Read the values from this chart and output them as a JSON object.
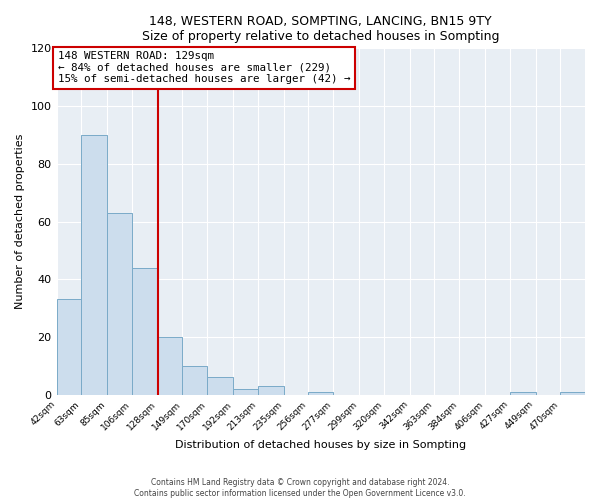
{
  "title": "148, WESTERN ROAD, SOMPTING, LANCING, BN15 9TY",
  "subtitle": "Size of property relative to detached houses in Sompting",
  "xlabel": "Distribution of detached houses by size in Sompting",
  "ylabel": "Number of detached properties",
  "bar_labels": [
    "42sqm",
    "63sqm",
    "85sqm",
    "106sqm",
    "128sqm",
    "149sqm",
    "170sqm",
    "192sqm",
    "213sqm",
    "235sqm",
    "256sqm",
    "277sqm",
    "299sqm",
    "320sqm",
    "342sqm",
    "363sqm",
    "384sqm",
    "406sqm",
    "427sqm",
    "449sqm",
    "470sqm"
  ],
  "bar_values": [
    33,
    90,
    63,
    44,
    20,
    10,
    6,
    2,
    3,
    0,
    1,
    0,
    0,
    0,
    0,
    0,
    0,
    0,
    1,
    0,
    1
  ],
  "bin_edges": [
    42,
    63,
    85,
    106,
    128,
    149,
    170,
    192,
    213,
    235,
    256,
    277,
    299,
    320,
    342,
    363,
    384,
    406,
    427,
    449,
    470,
    491
  ],
  "property_line_x": 128,
  "annotation_text": "148 WESTERN ROAD: 129sqm\n← 84% of detached houses are smaller (229)\n15% of semi-detached houses are larger (42) →",
  "bar_color": "#ccdded",
  "bar_edgecolor": "#7aaac8",
  "redline_color": "#cc0000",
  "annotation_box_edgecolor": "#cc0000",
  "figure_bg_color": "#ffffff",
  "plot_bg_color": "#e8eef4",
  "grid_color": "#ffffff",
  "ylim": [
    0,
    120
  ],
  "yticks": [
    0,
    20,
    40,
    60,
    80,
    100,
    120
  ],
  "footer_line1": "Contains HM Land Registry data © Crown copyright and database right 2024.",
  "footer_line2": "Contains public sector information licensed under the Open Government Licence v3.0."
}
